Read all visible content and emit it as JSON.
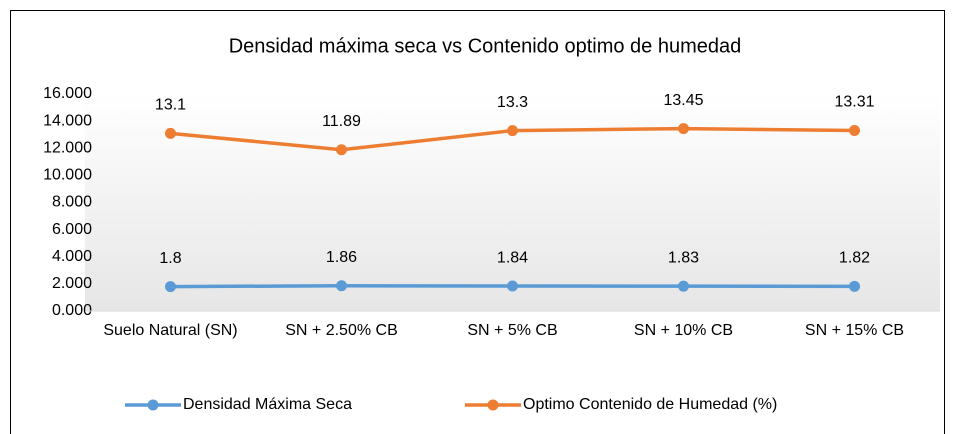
{
  "chart_data": {
    "type": "line",
    "title": "Densidad máxima seca vs Contenido optimo de humedad",
    "categories": [
      "Suelo Natural (SN)",
      "SN + 2.50% CB",
      "SN + 5% CB",
      "SN + 10% CB",
      "SN + 15% CB"
    ],
    "series": [
      {
        "name": "Densidad Máxima Seca",
        "color": "#5b9bd5",
        "values": [
          1.8,
          1.86,
          1.84,
          1.83,
          1.82
        ]
      },
      {
        "name": "Optimo Contenido de Humedad (%)",
        "color": "#ed7d31",
        "values": [
          13.1,
          11.89,
          13.3,
          13.45,
          13.31
        ]
      }
    ],
    "ylim": [
      0,
      16
    ],
    "yticks": [
      {
        "value": 0,
        "label": "0.000"
      },
      {
        "value": 2,
        "label": "2.000"
      },
      {
        "value": 4,
        "label": "4.000"
      },
      {
        "value": 6,
        "label": "6.000"
      },
      {
        "value": 8,
        "label": "8.000"
      },
      {
        "value": 10,
        "label": "10.000"
      },
      {
        "value": 12,
        "label": "12.000"
      },
      {
        "value": 14,
        "label": "14.000"
      },
      {
        "value": 16,
        "label": "16.000"
      }
    ],
    "grid": false,
    "legend": "bottom"
  }
}
